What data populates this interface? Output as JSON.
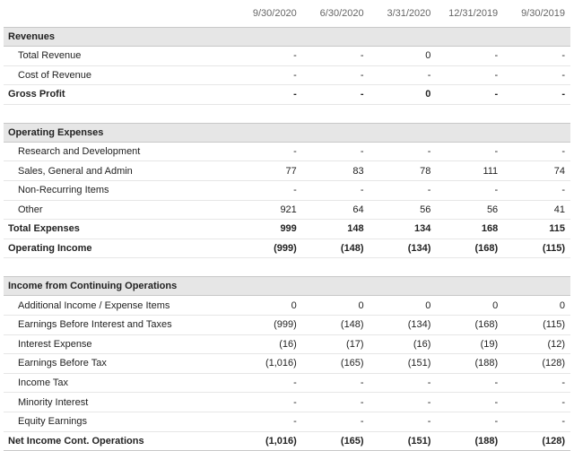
{
  "columns": [
    "9/30/2020",
    "6/30/2020",
    "3/31/2020",
    "12/31/2019",
    "9/30/2019"
  ],
  "sections": [
    {
      "title": "Revenues",
      "rows": [
        {
          "label": "Total Revenue",
          "values": [
            "-",
            "-",
            "0",
            "-",
            "-"
          ],
          "bold": false
        },
        {
          "label": "Cost of Revenue",
          "values": [
            "-",
            "-",
            "-",
            "-",
            "-"
          ],
          "bold": false
        },
        {
          "label": "Gross Profit",
          "values": [
            "-",
            "-",
            "0",
            "-",
            "-"
          ],
          "bold": true
        }
      ]
    },
    {
      "title": "Operating Expenses",
      "rows": [
        {
          "label": "Research and Development",
          "values": [
            "-",
            "-",
            "-",
            "-",
            "-"
          ],
          "bold": false
        },
        {
          "label": "Sales, General and Admin",
          "values": [
            "77",
            "83",
            "78",
            "111",
            "74"
          ],
          "bold": false
        },
        {
          "label": "Non-Recurring Items",
          "values": [
            "-",
            "-",
            "-",
            "-",
            "-"
          ],
          "bold": false
        },
        {
          "label": "Other",
          "values": [
            "921",
            "64",
            "56",
            "56",
            "41"
          ],
          "bold": false
        },
        {
          "label": "Total Expenses",
          "values": [
            "999",
            "148",
            "134",
            "168",
            "115"
          ],
          "bold": true
        },
        {
          "label": "Operating Income",
          "values": [
            "(999)",
            "(148)",
            "(134)",
            "(168)",
            "(115)"
          ],
          "bold": true
        }
      ]
    },
    {
      "title": "Income from Continuing Operations",
      "rows": [
        {
          "label": "Additional Income / Expense Items",
          "values": [
            "0",
            "0",
            "0",
            "0",
            "0"
          ],
          "bold": false
        },
        {
          "label": "Earnings Before Interest and Taxes",
          "values": [
            "(999)",
            "(148)",
            "(134)",
            "(168)",
            "(115)"
          ],
          "bold": false
        },
        {
          "label": "Interest Expense",
          "values": [
            "(16)",
            "(17)",
            "(16)",
            "(19)",
            "(12)"
          ],
          "bold": false
        },
        {
          "label": "Earnings Before Tax",
          "values": [
            "(1,016)",
            "(165)",
            "(151)",
            "(188)",
            "(128)"
          ],
          "bold": false
        },
        {
          "label": "Income Tax",
          "values": [
            "-",
            "-",
            "-",
            "-",
            "-"
          ],
          "bold": false
        },
        {
          "label": "Minority Interest",
          "values": [
            "-",
            "-",
            "-",
            "-",
            "-"
          ],
          "bold": false
        },
        {
          "label": "Equity Earnings",
          "values": [
            "-",
            "-",
            "-",
            "-",
            "-"
          ],
          "bold": false
        },
        {
          "label": "Net Income Cont. Operations",
          "values": [
            "(1,016)",
            "(165)",
            "(151)",
            "(188)",
            "(128)"
          ],
          "bold": true
        }
      ]
    }
  ]
}
